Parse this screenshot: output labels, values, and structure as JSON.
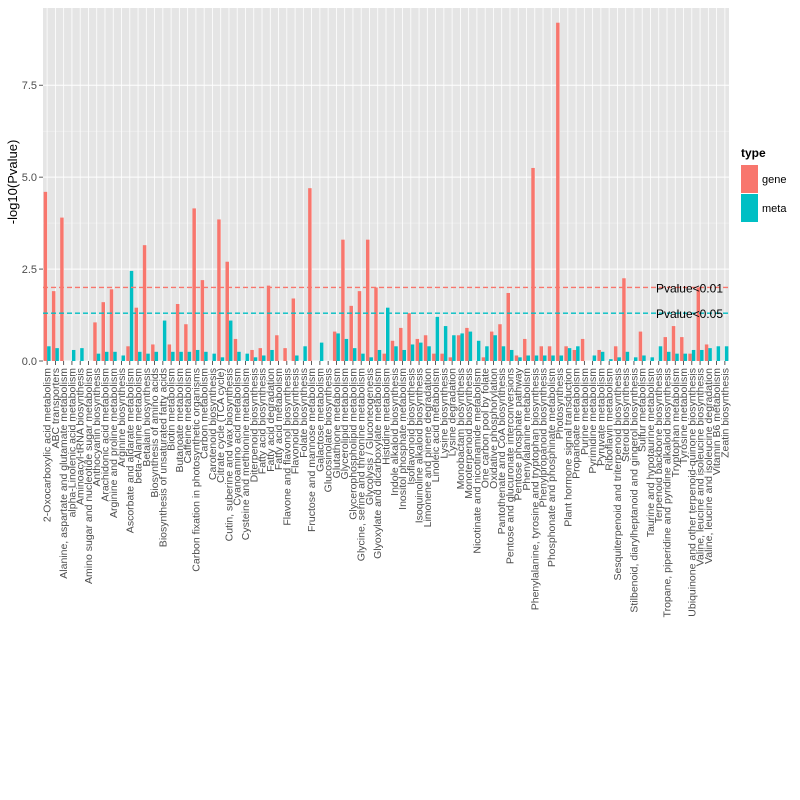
{
  "chart_data": {
    "type": "bar",
    "xlabel": "",
    "ylabel": "-log10(Pvalue)",
    "ylim": [
      0,
      9.6
    ],
    "yticks": [
      0.0,
      2.5,
      5.0,
      7.5
    ],
    "ytick_labels": [
      "0.0",
      "2.5",
      "5.0",
      "7.5"
    ],
    "grid": true,
    "legend": {
      "title": "type",
      "position": "right"
    },
    "categories": [
      "2-Oxocarboxylic acid metabolism",
      "ABC transporters",
      "Alanine, aspartate and glutamate metabolism",
      "alpha-Linolenic acid metabolism",
      "Aminoacyl-tRNA biosynthesis",
      "Amino sugar and nucleotide sugar metabolism",
      "Anthocyanin biosynthesis",
      "Arachidonic acid metabolism",
      "Arginine and proline metabolism",
      "Arginine biosynthesis",
      "Ascorbate and aldarate metabolism",
      "beta-Alanine metabolism",
      "Betalain biosynthesis",
      "Biosynthesis of amino acids",
      "Biosynthesis of unsaturated fatty acids",
      "Biotin metabolism",
      "Butanoate metabolism",
      "Caffeine metabolism",
      "Carbon fixation in photosynthetic organisms",
      "Carbon metabolism",
      "Carotenoid biosynthesis",
      "Citrate cycle (TCA cycle)",
      "Cutin, suberine and wax biosynthesis",
      "Cyanoamino acid metabolism",
      "Cysteine and methionine metabolism",
      "Diterpenoid biosynthesis",
      "Fatty acid biosynthesis",
      "Fatty acid degradation",
      "Fatty acid metabolism",
      "Flavone and flavonol biosynthesis",
      "Flavonoid biosynthesis",
      "Folate biosynthesis",
      "Fructose and mannose metabolism",
      "Galactose metabolism",
      "Glucosinolate biosynthesis",
      "Glutathione metabolism",
      "Glycerolipid metabolism",
      "Glycerophospholipid metabolism",
      "Glycine, serine and threonine metabolism",
      "Glycolysis / Gluconeogenesis",
      "Glyoxylate and dicarboxylate metabolism",
      "Histidine metabolism",
      "Indole alkaloid biosynthesis",
      "Inositol phosphate metabolism",
      "Isoflavonoid biosynthesis",
      "Isoquinoline alkaloid biosynthesis",
      "Limonene and pinene degradation",
      "Linoleic acid metabolism",
      "Lysine biosynthesis",
      "Lysine degradation",
      "Monobactam biosynthesis",
      "Monoterpenoid biosynthesis",
      "Nicotinate and nicotinamide metabolism",
      "One carbon pool by folate",
      "Oxidative phosphorylation",
      "Pantothenate and CoA biosynthesis",
      "Pentose and glucuronate interconversions",
      "Pentose phosphate pathway",
      "Phenylalanine metabolism",
      "Phenylalanine, tyrosine and tryptophan biosynthesis",
      "Phenylpropanoid biosynthesis",
      "Phosphonate and phosphinate metabolism",
      "Photosynthesis",
      "Plant hormone signal transduction",
      "Propanoate metabolism",
      "Purine metabolism",
      "Pyrimidine metabolism",
      "Pyruvate metabolism",
      "Riboflavin metabolism",
      "Sesquiterpenoid and triterpenoid biosynthesis",
      "Steroid biosynthesis",
      "Stilbenoid, diarylheptanoid and gingerol biosynthesis",
      "Sulfur metabolism",
      "Taurine and hypotaurine metabolism",
      "Terpenoid backbone biosynthesis",
      "Tropane, piperidine and pyridine alkaloid biosynthesis",
      "Tryptophan metabolism",
      "Tyrosine metabolism",
      "Ubiquinone and other terpenoid-quinone biosynthesis",
      "Valine, leucine and isoleucine biosynthesis",
      "Valine, leucine and isoleucine degradation",
      "Vitamin B6 metabolism",
      "Zeatin biosynthesis"
    ],
    "series": [
      {
        "name": "gene",
        "color": "#f8766d",
        "values": [
          4.6,
          1.9,
          3.9,
          0.0,
          0.0,
          0.0,
          1.05,
          1.6,
          1.95,
          0.0,
          0.4,
          1.45,
          3.15,
          0.45,
          0.0,
          0.45,
          1.55,
          1.0,
          4.15,
          2.2,
          0.0,
          3.85,
          2.7,
          0.6,
          0.0,
          0.3,
          0.35,
          2.05,
          0.7,
          0.35,
          1.7,
          0.0,
          4.7,
          0.0,
          0.0,
          0.8,
          3.3,
          1.5,
          1.9,
          3.3,
          2.0,
          0.2,
          0.55,
          0.9,
          1.3,
          0.6,
          0.7,
          0.2,
          0.2,
          0.1,
          0.7,
          0.9,
          0.0,
          0.1,
          0.8,
          1.0,
          1.85,
          0.15,
          0.6,
          5.25,
          0.4,
          0.4,
          9.2,
          0.4,
          0.3,
          0.6,
          0.0,
          0.3,
          0.0,
          0.4,
          2.25,
          0.0,
          0.8,
          0.0,
          0.0,
          0.65,
          0.95,
          0.65,
          0.2,
          2.0,
          0.45,
          0.0,
          0.0
        ]
      },
      {
        "name": "meta",
        "color": "#00bfc4",
        "values": [
          0.4,
          0.35,
          0.0,
          0.3,
          0.35,
          0.0,
          0.2,
          0.25,
          0.25,
          0.15,
          2.45,
          0.25,
          0.2,
          0.25,
          1.1,
          0.25,
          0.25,
          0.25,
          0.3,
          0.25,
          0.2,
          0.1,
          1.1,
          0.25,
          0.2,
          0.1,
          0.15,
          0.3,
          0.0,
          0.0,
          0.15,
          0.4,
          0.0,
          0.5,
          0.0,
          0.75,
          0.6,
          0.35,
          0.2,
          0.1,
          0.3,
          1.45,
          0.4,
          0.3,
          0.45,
          0.5,
          0.4,
          1.2,
          0.95,
          0.7,
          0.75,
          0.8,
          0.55,
          0.4,
          0.7,
          0.4,
          0.3,
          0.1,
          0.15,
          0.15,
          0.15,
          0.15,
          0.15,
          0.35,
          0.4,
          0.0,
          0.15,
          0.25,
          0.05,
          0.1,
          0.25,
          0.1,
          0.15,
          0.1,
          0.4,
          0.25,
          0.2,
          0.2,
          0.3,
          0.3,
          0.35,
          0.4,
          0.4
        ]
      }
    ],
    "reference_lines": [
      {
        "label": "Pvalue<0.01",
        "y": 2.0,
        "color": "#f8766d"
      },
      {
        "label": "Pvalue<0.05",
        "y": 1.3,
        "color": "#00bfc4"
      }
    ]
  }
}
